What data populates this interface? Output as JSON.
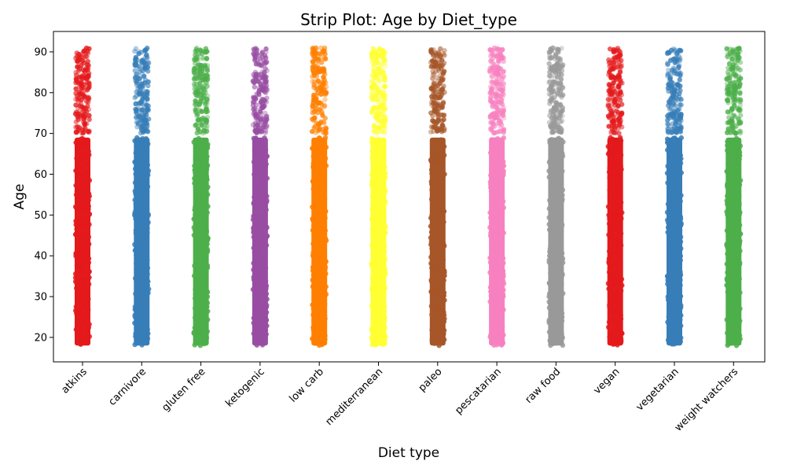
{
  "chart_data": {
    "type": "scatter",
    "subtype": "strip",
    "title": "Strip Plot: Age by Diet_type",
    "xlabel": "Diet type",
    "ylabel": "Age",
    "categories": [
      "atkins",
      "carnivore",
      "gluten free",
      "ketogenic",
      "low carb",
      "mediterranean",
      "paleo",
      "pescatarian",
      "raw food",
      "vegan",
      "vegetarian",
      "weight watchers"
    ],
    "colors": [
      "#e41a1c",
      "#377eb8",
      "#4daf4a",
      "#984ea3",
      "#ff7f00",
      "#ffff33",
      "#a65628",
      "#f781bf",
      "#999999",
      "#e41a1c",
      "#377eb8",
      "#4daf4a"
    ],
    "y_range_per_category": [
      18,
      91
    ],
    "dense_range_per_category": [
      18,
      69
    ],
    "sparse_range_per_category": [
      70,
      91
    ],
    "ylim": [
      14,
      95
    ],
    "yticks": [
      20,
      30,
      40,
      50,
      60,
      70,
      80,
      90
    ],
    "xtick_rotation": 45,
    "grid": false,
    "legend": "none"
  }
}
